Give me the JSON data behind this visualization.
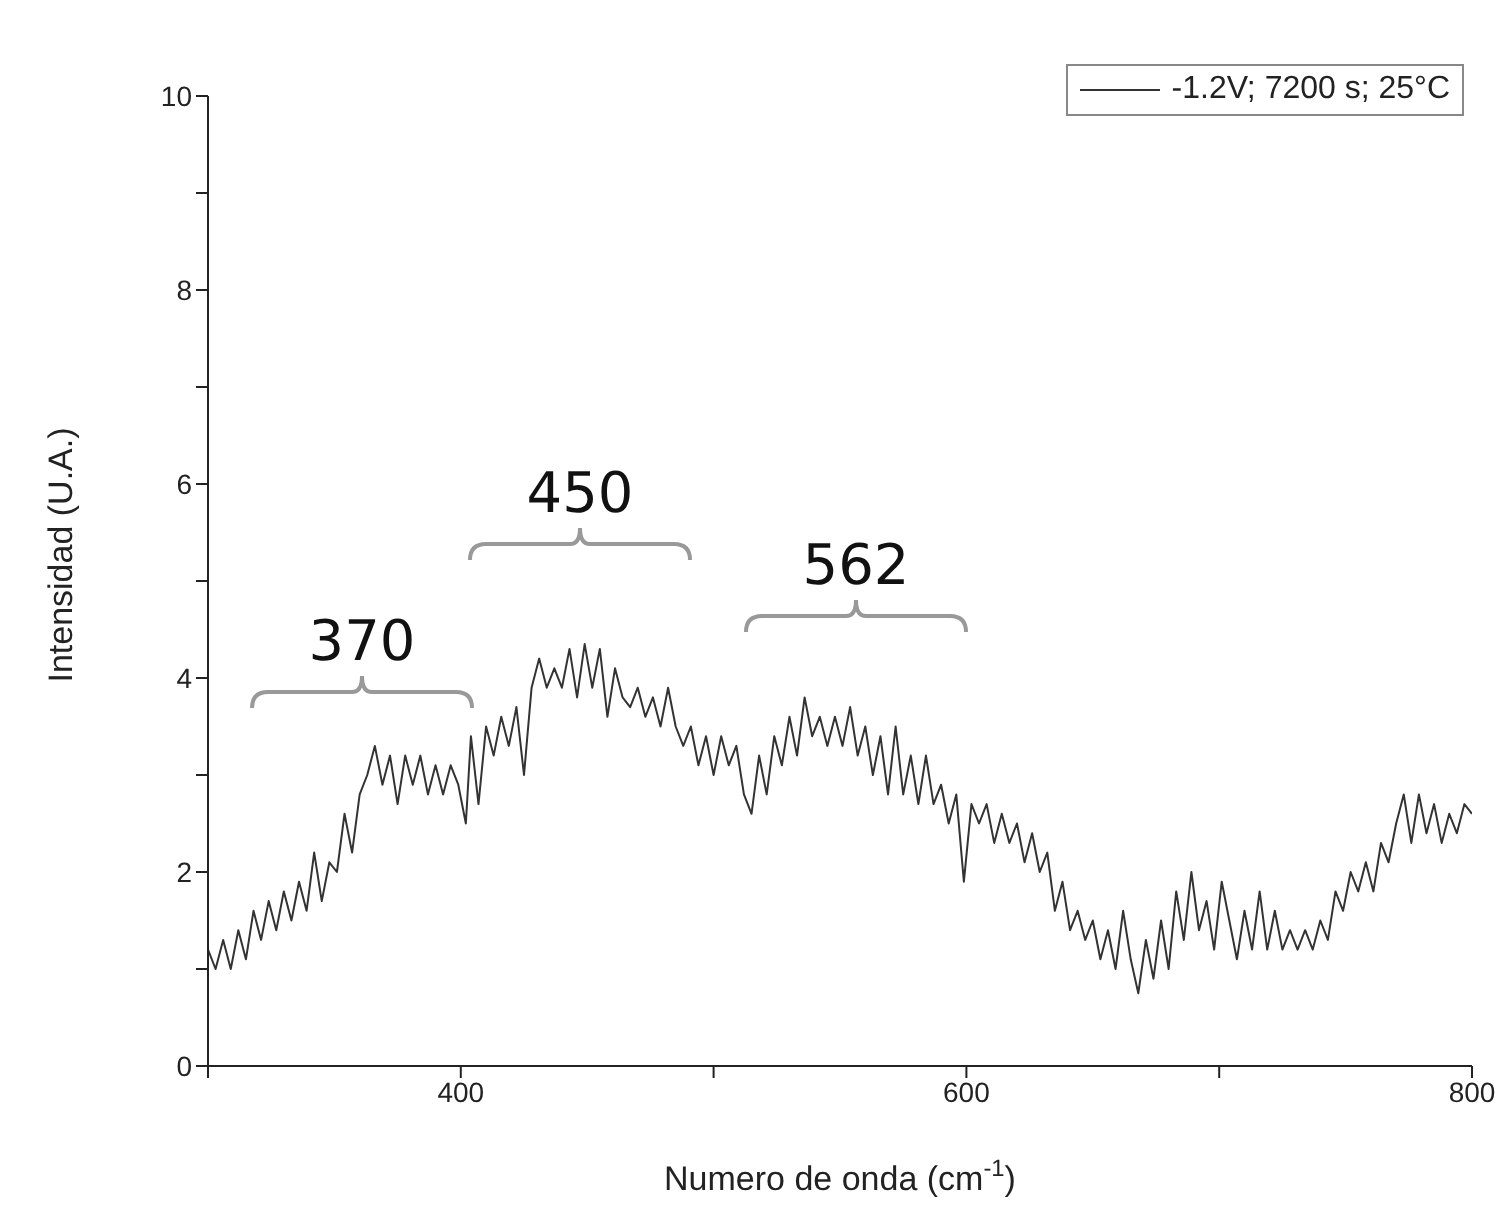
{
  "chart_data": {
    "type": "line",
    "xlabel": "Numero de onda (cm$^{-1}$)",
    "ylabel": "Intensidad (U.A.)",
    "xlim": [
      300,
      800
    ],
    "xticks": [
      {
        "value": 300,
        "label": null
      },
      400,
      {
        "value": 500,
        "label": null
      },
      600,
      {
        "value": 700,
        "label": null
      },
      800
    ],
    "ylim": [
      0,
      10
    ],
    "yticks": [
      0,
      {
        "value": 1,
        "label": null
      },
      2,
      {
        "value": 3,
        "label": null
      },
      4,
      {
        "value": 5,
        "label": null
      },
      6,
      {
        "value": 7,
        "label": null
      },
      8,
      {
        "value": 9,
        "label": null
      },
      10
    ],
    "grid": false,
    "legend": "top right",
    "annotations": [
      "370",
      "450",
      "562"
    ],
    "x": [
      300,
      303,
      306,
      309,
      312,
      315,
      318,
      321,
      324,
      327,
      330,
      333,
      336,
      339,
      342,
      345,
      348,
      351,
      354,
      357,
      360,
      363,
      366,
      369,
      372,
      375,
      378,
      381,
      384,
      387,
      390,
      393,
      396,
      399,
      402,
      404,
      407,
      410,
      413,
      416,
      419,
      422,
      425,
      428,
      431,
      434,
      437,
      440,
      443,
      446,
      449,
      452,
      455,
      458,
      461,
      464,
      467,
      470,
      473,
      476,
      479,
      482,
      485,
      488,
      491,
      494,
      497,
      500,
      503,
      506,
      509,
      512,
      515,
      518,
      521,
      524,
      527,
      530,
      533,
      536,
      539,
      542,
      545,
      548,
      551,
      554,
      557,
      560,
      563,
      566,
      569,
      572,
      575,
      578,
      581,
      584,
      587,
      590,
      593,
      596,
      599,
      602,
      605,
      608,
      611,
      614,
      617,
      620,
      623,
      626,
      629,
      632,
      635,
      638,
      641,
      644,
      647,
      650,
      653,
      656,
      659,
      662,
      665,
      668,
      671,
      674,
      677,
      680,
      683,
      686,
      689,
      692,
      695,
      698,
      701,
      704,
      707,
      710,
      713,
      716,
      719,
      722,
      725,
      728,
      731,
      734,
      737,
      740,
      743,
      746,
      749,
      752,
      755,
      758,
      761,
      764,
      767,
      770,
      773,
      776,
      779,
      782,
      785,
      788,
      791,
      794,
      797,
      800
    ],
    "series": [
      {
        "name": "-1.2V; 7200 s; 25°C",
        "color": "#333333",
        "values": [
          1.2,
          1.0,
          1.3,
          1.0,
          1.4,
          1.1,
          1.6,
          1.3,
          1.7,
          1.4,
          1.8,
          1.5,
          1.9,
          1.6,
          2.2,
          1.7,
          2.1,
          2.0,
          2.6,
          2.2,
          2.8,
          3.0,
          3.3,
          2.9,
          3.2,
          2.7,
          3.2,
          2.9,
          3.2,
          2.8,
          3.1,
          2.8,
          3.1,
          2.9,
          2.5,
          3.4,
          2.7,
          3.5,
          3.2,
          3.6,
          3.3,
          3.7,
          3.0,
          3.9,
          4.2,
          3.9,
          4.1,
          3.9,
          4.3,
          3.8,
          4.35,
          3.9,
          4.3,
          3.6,
          4.1,
          3.8,
          3.7,
          3.9,
          3.6,
          3.8,
          3.5,
          3.9,
          3.5,
          3.3,
          3.5,
          3.1,
          3.4,
          3.0,
          3.4,
          3.1,
          3.3,
          2.8,
          2.6,
          3.2,
          2.8,
          3.4,
          3.1,
          3.6,
          3.2,
          3.8,
          3.4,
          3.6,
          3.3,
          3.6,
          3.3,
          3.7,
          3.2,
          3.5,
          3.0,
          3.4,
          2.8,
          3.5,
          2.8,
          3.2,
          2.7,
          3.2,
          2.7,
          2.9,
          2.5,
          2.8,
          1.9,
          2.7,
          2.5,
          2.7,
          2.3,
          2.6,
          2.3,
          2.5,
          2.1,
          2.4,
          2.0,
          2.2,
          1.6,
          1.9,
          1.4,
          1.6,
          1.3,
          1.5,
          1.1,
          1.4,
          1.0,
          1.6,
          1.1,
          0.75,
          1.3,
          0.9,
          1.5,
          1.0,
          1.8,
          1.3,
          2.0,
          1.4,
          1.7,
          1.2,
          1.9,
          1.5,
          1.1,
          1.6,
          1.2,
          1.8,
          1.2,
          1.6,
          1.2,
          1.4,
          1.2,
          1.4,
          1.2,
          1.5,
          1.3,
          1.8,
          1.6,
          2.0,
          1.8,
          2.1,
          1.8,
          2.3,
          2.1,
          2.5,
          2.8,
          2.3,
          2.8,
          2.4,
          2.7,
          2.3,
          2.6,
          2.4,
          2.7,
          2.6
        ]
      }
    ]
  }
}
